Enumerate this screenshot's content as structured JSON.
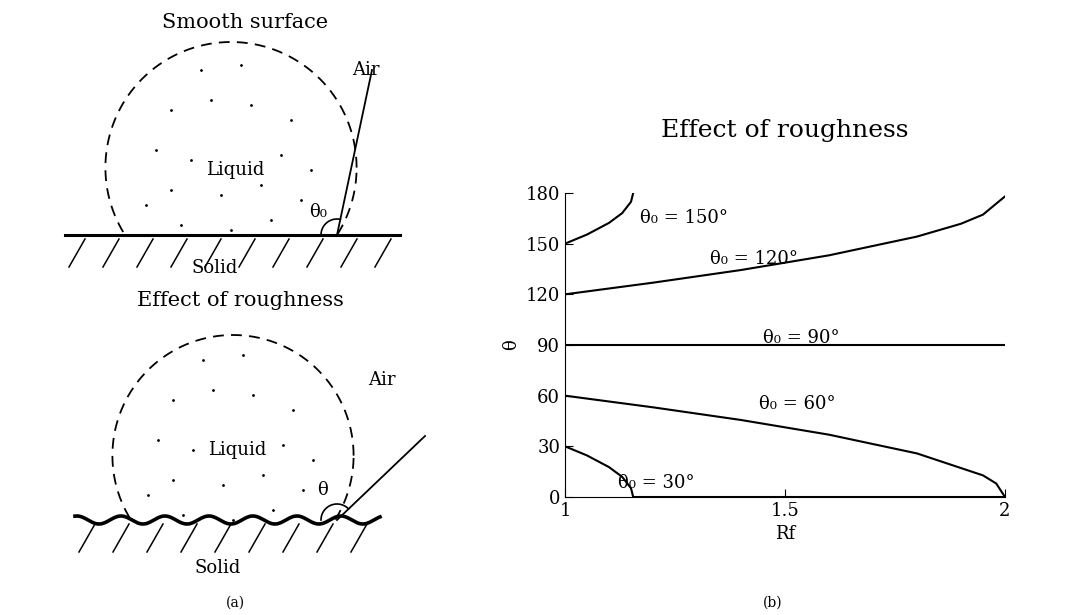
{
  "panel_a": {
    "top": {
      "title": "Smooth surface",
      "air": "Air",
      "liquid": "Liquid",
      "angle": "θ₀",
      "solid": "Solid"
    },
    "bottom": {
      "title": "Effect of roughness",
      "air": "Air",
      "liquid": "Liquid",
      "angle": "θ",
      "solid": "Solid"
    },
    "label": "(a)"
  },
  "chart_data": {
    "type": "line",
    "title": "Effect of roughness",
    "x_label": "Rf",
    "y_label": "θ",
    "annotations": [
      "(b)"
    ],
    "xlim": [
      1,
      2
    ],
    "xticks": [
      1,
      1.5,
      2
    ],
    "ylim": [
      0,
      180
    ],
    "yticks": [
      0,
      30,
      60,
      90,
      120,
      150,
      180
    ],
    "series": [
      {
        "name": "θ₀ = 150°",
        "color": "#000000",
        "x": [
          1,
          1.05,
          1.1,
          1.13,
          1.15,
          1.155
        ],
        "values": [
          150,
          155.4,
          162.3,
          168.1,
          174.8,
          180
        ]
      },
      {
        "name": "θ₀ = 120°",
        "color": "#000000",
        "x": [
          1,
          1.2,
          1.4,
          1.6,
          1.8,
          1.9,
          1.95,
          2.0
        ],
        "values": [
          120,
          126.9,
          134.4,
          143.1,
          154.2,
          161.8,
          167.2,
          178
        ]
      },
      {
        "name": "θ₀ = 90°",
        "color": "#000000",
        "x": [
          1,
          2
        ],
        "values": [
          90,
          90
        ]
      },
      {
        "name": "θ₀ = 60°",
        "color": "#000000",
        "x": [
          1,
          1.2,
          1.4,
          1.6,
          1.8,
          1.95,
          1.98,
          2.0
        ],
        "values": [
          60,
          53.1,
          45.6,
          36.9,
          25.8,
          12.8,
          8,
          0
        ]
      },
      {
        "name": "θ₀ = 30°",
        "color": "#000000",
        "x": [
          1,
          1.05,
          1.1,
          1.13,
          1.15,
          1.155,
          2.0
        ],
        "values": [
          30,
          24.6,
          17.7,
          11.9,
          5.2,
          0,
          0
        ]
      }
    ]
  }
}
